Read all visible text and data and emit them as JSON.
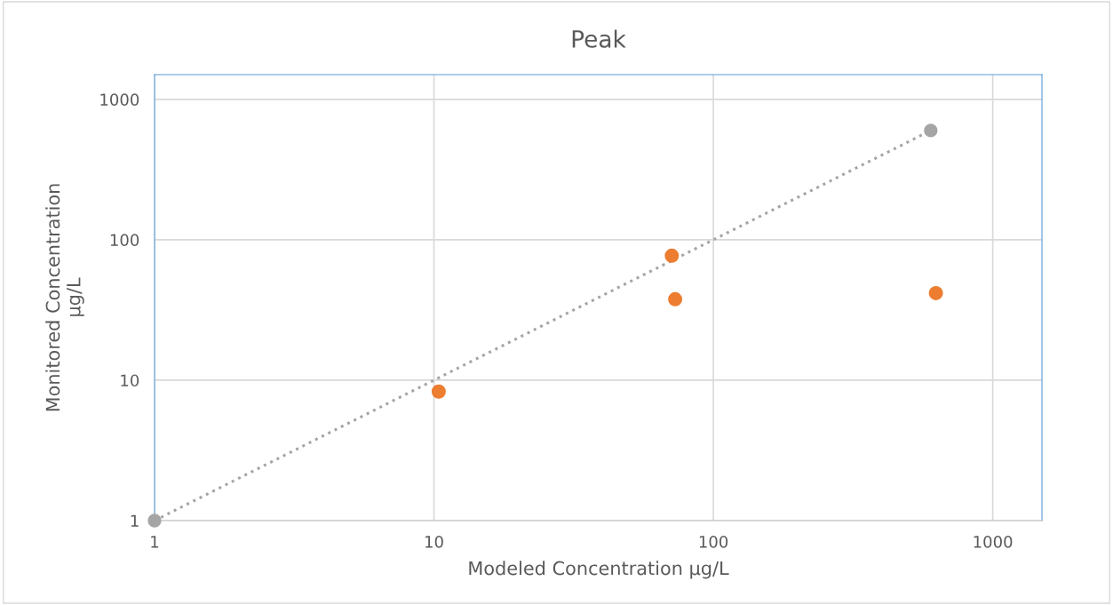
{
  "chart_data": {
    "type": "scatter",
    "title": "Peak",
    "xlabel": "Modeled Concentration µg/L",
    "ylabel": "Monitored Concentration\nµg/L",
    "log": "xy",
    "xlim": [
      1,
      1500
    ],
    "ylim": [
      1,
      1500
    ],
    "xticks": [
      1,
      10,
      100,
      1000
    ],
    "yticks": [
      1,
      10,
      100,
      1000
    ],
    "grid": true,
    "marker": "circle",
    "series": [
      {
        "type": "line",
        "line_style": "dotted",
        "color": "#a5a5a5",
        "x": [
          1,
          600
        ],
        "values": [
          1,
          600
        ]
      },
      {
        "color": "#ed7d31",
        "x": [
          10.4,
          71,
          73,
          626
        ],
        "values": [
          8.3,
          77,
          37.7,
          41.7
        ]
      }
    ]
  }
}
